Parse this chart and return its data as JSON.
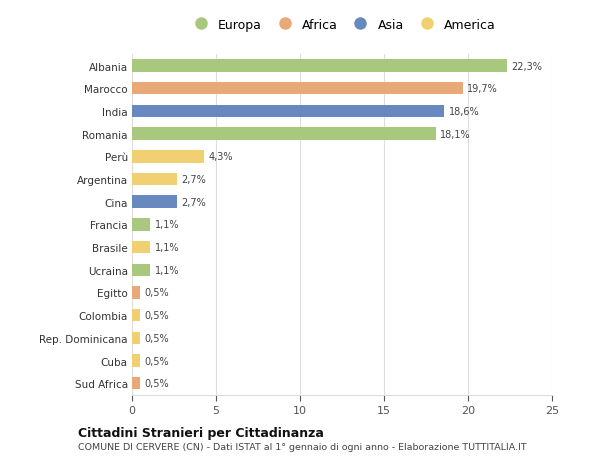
{
  "countries": [
    "Albania",
    "Marocco",
    "India",
    "Romania",
    "Perù",
    "Argentina",
    "Cina",
    "Francia",
    "Brasile",
    "Ucraina",
    "Egitto",
    "Colombia",
    "Rep. Dominicana",
    "Cuba",
    "Sud Africa"
  ],
  "values": [
    22.3,
    19.7,
    18.6,
    18.1,
    4.3,
    2.7,
    2.7,
    1.1,
    1.1,
    1.1,
    0.5,
    0.5,
    0.5,
    0.5,
    0.5
  ],
  "labels": [
    "22,3%",
    "19,7%",
    "18,6%",
    "18,1%",
    "4,3%",
    "2,7%",
    "2,7%",
    "1,1%",
    "1,1%",
    "1,1%",
    "0,5%",
    "0,5%",
    "0,5%",
    "0,5%",
    "0,5%"
  ],
  "continents": [
    "Europa",
    "Africa",
    "Asia",
    "Europa",
    "America",
    "America",
    "Asia",
    "Europa",
    "America",
    "Europa",
    "Africa",
    "America",
    "America",
    "America",
    "Africa"
  ],
  "continent_colors": {
    "Europa": "#a8c87e",
    "Africa": "#e8a878",
    "Asia": "#6888c0",
    "America": "#f0d070"
  },
  "legend_order": [
    "Europa",
    "Africa",
    "Asia",
    "America"
  ],
  "title": "Cittadini Stranieri per Cittadinanza",
  "subtitle": "COMUNE DI CERVERE (CN) - Dati ISTAT al 1° gennaio di ogni anno - Elaborazione TUTTITALIA.IT",
  "xlim": [
    0,
    25
  ],
  "xticks": [
    0,
    5,
    10,
    15,
    20,
    25
  ],
  "bg_color": "#ffffff",
  "grid_color": "#dddddd"
}
